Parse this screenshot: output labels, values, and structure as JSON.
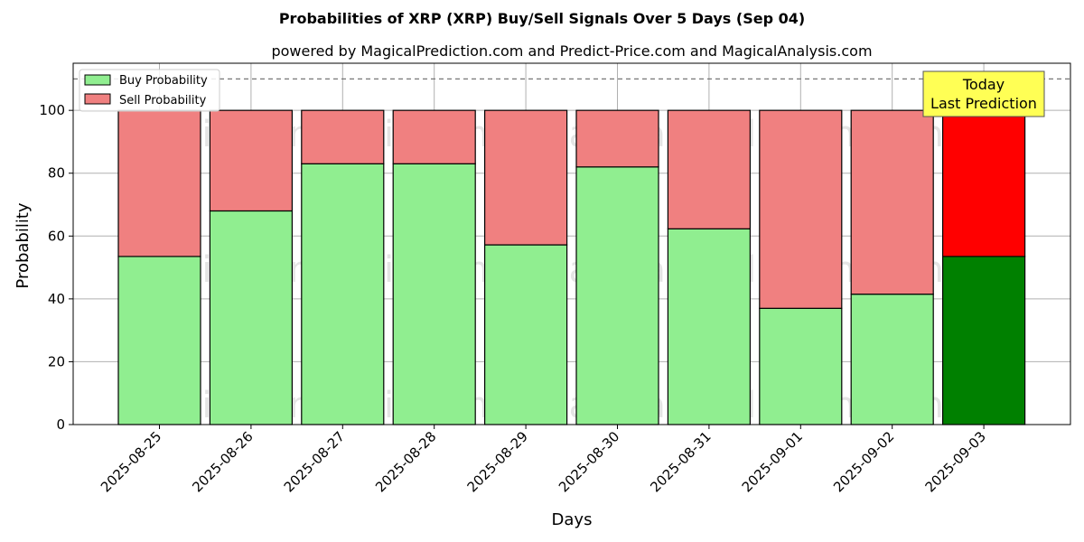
{
  "chart_data": {
    "type": "bar",
    "stacked": true,
    "title": "Probabilities of XRP (XRP) Buy/Sell Signals Over 5 Days (Sep 04)",
    "subtitle": "powered by MagicalPrediction.com and Predict-Price.com and MagicalAnalysis.com",
    "xlabel": "Days",
    "ylabel": "Probability",
    "ylim": [
      0,
      115
    ],
    "yticks": [
      0,
      20,
      40,
      60,
      80,
      100
    ],
    "grid": true,
    "legend_position": "top-left",
    "reference_line": 110,
    "categories": [
      "2025-08-25",
      "2025-08-26",
      "2025-08-27",
      "2025-08-28",
      "2025-08-29",
      "2025-08-30",
      "2025-08-31",
      "2025-09-01",
      "2025-09-02",
      "2025-09-03"
    ],
    "series": [
      {
        "name": "Buy Probability",
        "color": "#90ee90",
        "values": [
          53.5,
          68.0,
          83.0,
          83.0,
          57.2,
          82.0,
          62.3,
          37.0,
          41.5,
          53.5
        ]
      },
      {
        "name": "Sell Probability",
        "color": "#f08080",
        "values": [
          46.5,
          32.0,
          17.0,
          17.0,
          42.8,
          18.0,
          37.7,
          63.0,
          58.5,
          46.5
        ]
      }
    ],
    "highlight": {
      "index": 9,
      "buy_color": "#008000",
      "sell_color": "#ff0000",
      "annotation": [
        "Today",
        "Last Prediction"
      ],
      "annotation_color": "#ffff55"
    },
    "watermarks": [
      "MagicalAnalysis.com",
      "MagicalPrediction.com",
      "MagicalAnalysis.com",
      "MagicalPrediction.com",
      "MagicalAnalysis.com",
      "MagicalPrediction.com"
    ]
  }
}
